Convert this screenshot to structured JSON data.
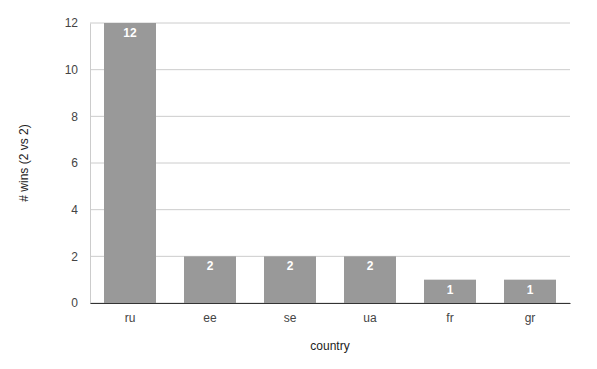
{
  "chart_data": {
    "type": "bar",
    "x_label": "country",
    "y_label": "# wins (2 vs 2)",
    "categories": [
      "ru",
      "ee",
      "se",
      "ua",
      "fr",
      "gr"
    ],
    "values": [
      12,
      2,
      2,
      2,
      1,
      1
    ],
    "color": "#999999",
    "ylim": [
      0,
      12
    ],
    "yticks": [
      0,
      2,
      4,
      6,
      8,
      10,
      12
    ],
    "grid": true,
    "data_labels": true
  }
}
